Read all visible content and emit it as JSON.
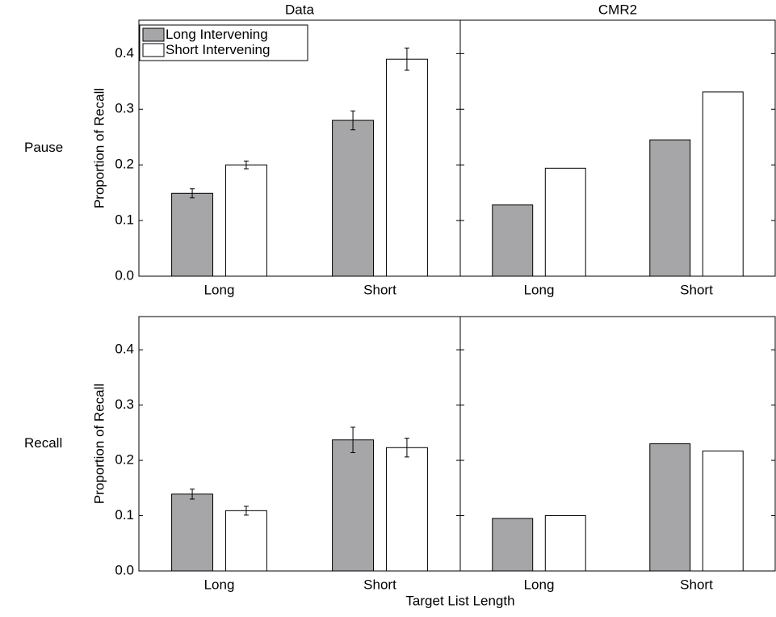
{
  "chart_data": [
    {
      "type": "bar",
      "title": "Data",
      "row_label": "Pause",
      "ylabel": "Proportion of Recall",
      "legend": "upper left",
      "categories": [
        "Long",
        "Short"
      ],
      "series": [
        {
          "name": "Long Intervening",
          "color": "#a6a6a9",
          "values": [
            0.149,
            0.28
          ],
          "errors": [
            0.008,
            0.017
          ]
        },
        {
          "name": "Short Intervening",
          "color": "#ffffff",
          "values": [
            0.2,
            0.39
          ],
          "errors": [
            0.007,
            0.02
          ]
        }
      ],
      "ylim": [
        0,
        0.46
      ],
      "yticks": [
        {
          "value": 0,
          "label": "0.0"
        },
        0.1,
        0.2,
        0.3,
        0.4
      ]
    },
    {
      "type": "bar",
      "title": "CMR2",
      "categories": [
        "Long",
        "Short"
      ],
      "series": [
        {
          "color": "#a6a6a9",
          "values": [
            0.128,
            0.245
          ]
        },
        {
          "color": "#ffffff",
          "values": [
            0.194,
            0.331
          ]
        }
      ],
      "ylim": [
        0,
        0.46
      ],
      "yticks": [
        0,
        0.1,
        0.2,
        0.3,
        0.4
      ],
      "ytick_labels": false
    },
    {
      "type": "bar",
      "row_label": "Recall",
      "ylabel": "Proportion of Recall",
      "xlabel": "Target List Length",
      "categories": [
        "Long",
        "Short"
      ],
      "series": [
        {
          "color": "#a6a6a9",
          "values": [
            0.139,
            0.237
          ],
          "errors": [
            0.009,
            0.023
          ]
        },
        {
          "color": "#ffffff",
          "values": [
            0.109,
            0.223
          ],
          "errors": [
            0.008,
            0.017
          ]
        }
      ],
      "ylim": [
        0,
        0.46
      ],
      "yticks": [
        {
          "value": 0,
          "label": "0.0"
        },
        0.1,
        0.2,
        0.3,
        0.4
      ]
    },
    {
      "type": "bar",
      "categories": [
        "Long",
        "Short"
      ],
      "series": [
        {
          "color": "#a6a6a9",
          "values": [
            0.095,
            0.23
          ]
        },
        {
          "color": "#ffffff",
          "values": [
            0.1,
            0.217
          ]
        }
      ],
      "ylim": [
        0,
        0.46
      ],
      "yticks": [
        0,
        0.1,
        0.2,
        0.3,
        0.4
      ],
      "ytick_labels": false
    }
  ]
}
